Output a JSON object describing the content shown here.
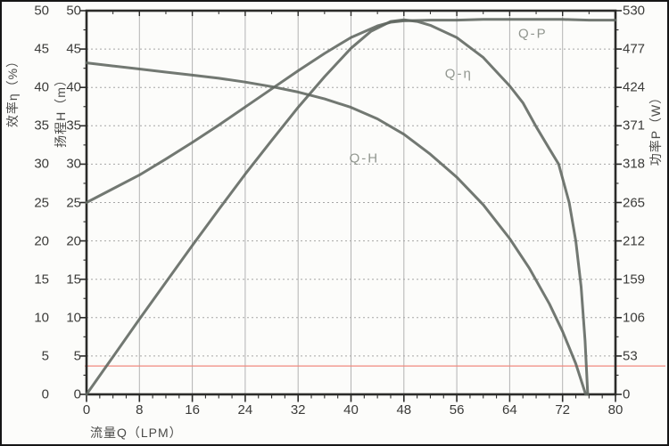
{
  "figure": {
    "background": "#fcfcfa",
    "curve_color": "#5f655f",
    "grid_color_vertical": "#b3b3b3",
    "grid_color_horizontal": "#a6a6a6",
    "axis_color": "#2b2b29",
    "curve_label_color": "#91968f",
    "reference_line_color": "#f0897e"
  },
  "chart_data": {
    "type": "line",
    "x_axis": {
      "title": "流量Q（LPM）",
      "min": 0,
      "max": 80,
      "major_step": 8,
      "minor_step": 2,
      "tick_labels": [
        0,
        8,
        16,
        24,
        32,
        40,
        48,
        56,
        64,
        72,
        80
      ]
    },
    "left_axis_outer": {
      "title": "效率η（%）",
      "min": 0,
      "max": 50,
      "step": 5,
      "tick_labels": [
        50,
        45,
        40,
        35,
        30,
        25,
        20,
        15,
        10,
        5,
        0
      ]
    },
    "left_axis_inner": {
      "title": "扬程H（m）",
      "min": 0,
      "max": 50,
      "step": 5,
      "tick_labels": [
        50,
        45,
        40,
        35,
        30,
        25,
        20,
        15,
        10,
        5,
        0
      ]
    },
    "right_axis": {
      "title": "功率P（W）",
      "min": 0,
      "max": 530,
      "step": 53,
      "tick_labels": [
        530,
        477,
        424,
        371,
        318,
        265,
        212,
        159,
        106,
        53,
        0
      ]
    },
    "grid": {
      "vertical_every_lpm": 8,
      "horizontal_every_units": 5,
      "horizontal_style": "dashed"
    },
    "series": [
      {
        "name": "Q-H",
        "axis": "left",
        "unit": "m",
        "points": [
          [
            0,
            43.2
          ],
          [
            4,
            42.8
          ],
          [
            8,
            42.4
          ],
          [
            12,
            42.0
          ],
          [
            16,
            41.6
          ],
          [
            20,
            41.2
          ],
          [
            24,
            40.7
          ],
          [
            28,
            40.1
          ],
          [
            32,
            39.4
          ],
          [
            36,
            38.5
          ],
          [
            40,
            37.4
          ],
          [
            44,
            35.9
          ],
          [
            48,
            33.9
          ],
          [
            52,
            31.3
          ],
          [
            56,
            28.3
          ],
          [
            60,
            24.7
          ],
          [
            64,
            20.3
          ],
          [
            67,
            16.4
          ],
          [
            70,
            11.8
          ],
          [
            72,
            8.2
          ],
          [
            74,
            4.0
          ],
          [
            75.5,
            0
          ]
        ]
      },
      {
        "name": "Q-η",
        "axis": "left",
        "unit": "%",
        "points": [
          [
            0,
            0
          ],
          [
            4,
            4.9
          ],
          [
            8,
            9.8
          ],
          [
            12,
            14.6
          ],
          [
            16,
            19.4
          ],
          [
            20,
            24.1
          ],
          [
            24,
            28.7
          ],
          [
            28,
            33.1
          ],
          [
            32,
            37.4
          ],
          [
            36,
            41.4
          ],
          [
            40,
            45.1
          ],
          [
            43,
            47.3
          ],
          [
            46,
            48.6
          ],
          [
            48,
            48.8
          ],
          [
            50,
            48.6
          ],
          [
            52,
            48.1
          ],
          [
            56,
            46.5
          ],
          [
            60,
            43.9
          ],
          [
            64,
            40.2
          ],
          [
            66,
            38.0
          ],
          [
            68,
            34.9
          ],
          [
            70,
            32.0
          ],
          [
            71.4,
            30.0
          ],
          [
            73,
            25.0
          ],
          [
            74,
            20.0
          ],
          [
            74.8,
            14.0
          ],
          [
            75.4,
            7.0
          ],
          [
            75.8,
            0
          ]
        ]
      },
      {
        "name": "Q-P",
        "axis": "right",
        "unit": "W",
        "points": [
          [
            0,
            265
          ],
          [
            4,
            284
          ],
          [
            8,
            303
          ],
          [
            12,
            325
          ],
          [
            16,
            348
          ],
          [
            20,
            372
          ],
          [
            24,
            397
          ],
          [
            28,
            422
          ],
          [
            32,
            447
          ],
          [
            36,
            471
          ],
          [
            40,
            493
          ],
          [
            44,
            509
          ],
          [
            46,
            514
          ],
          [
            48,
            516
          ],
          [
            52,
            517
          ],
          [
            56,
            517
          ],
          [
            60,
            518
          ],
          [
            64,
            518
          ],
          [
            68,
            518
          ],
          [
            72,
            518
          ],
          [
            76,
            517
          ],
          [
            80,
            517
          ]
        ]
      }
    ],
    "curve_labels": [
      {
        "text": "Q-P",
        "q": 67.5,
        "v": 47.0
      },
      {
        "text": "Q-η",
        "q": 56.3,
        "v": 41.8
      },
      {
        "text": "Q-H",
        "q": 42.0,
        "v": 30.7
      }
    ],
    "reference_line": {
      "value_left_scale": 3.7,
      "approx_power_w": 39,
      "orientation": "horizontal"
    }
  }
}
